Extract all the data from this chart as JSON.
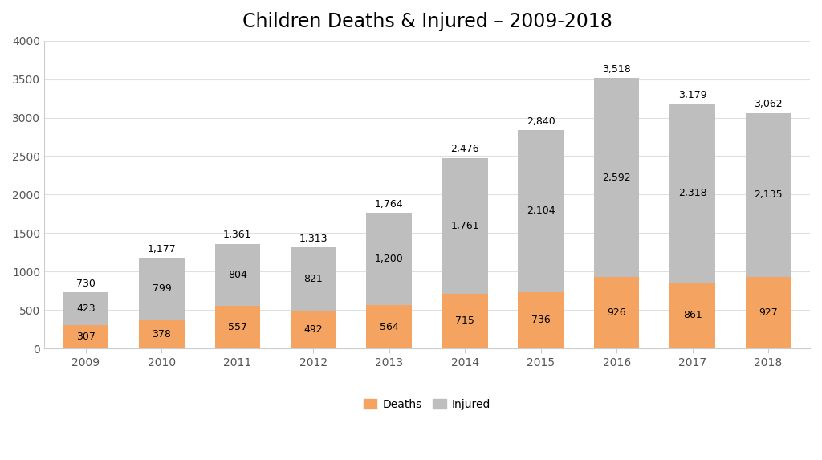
{
  "title": "Children Deaths & Injured – 2009-2018",
  "years": [
    "2009",
    "2010",
    "2011",
    "2012",
    "2013",
    "2014",
    "2015",
    "2016",
    "2017",
    "2018"
  ],
  "deaths": [
    307,
    378,
    557,
    492,
    564,
    715,
    736,
    926,
    861,
    927
  ],
  "injured": [
    423,
    799,
    804,
    821,
    1200,
    1761,
    2104,
    2592,
    2318,
    2135
  ],
  "totals": [
    730,
    1177,
    1361,
    1313,
    1764,
    2476,
    2840,
    3518,
    3179,
    3062
  ],
  "deaths_color": "#F4A460",
  "injured_color": "#BEBEBE",
  "background_color": "#FFFFFF",
  "plot_bg_color": "#FFFFFF",
  "ylim": [
    0,
    4000
  ],
  "yticks": [
    0,
    500,
    1000,
    1500,
    2000,
    2500,
    3000,
    3500,
    4000
  ],
  "title_fontsize": 17,
  "label_fontsize": 9,
  "tick_fontsize": 10,
  "legend_fontsize": 10,
  "bar_width": 0.6
}
